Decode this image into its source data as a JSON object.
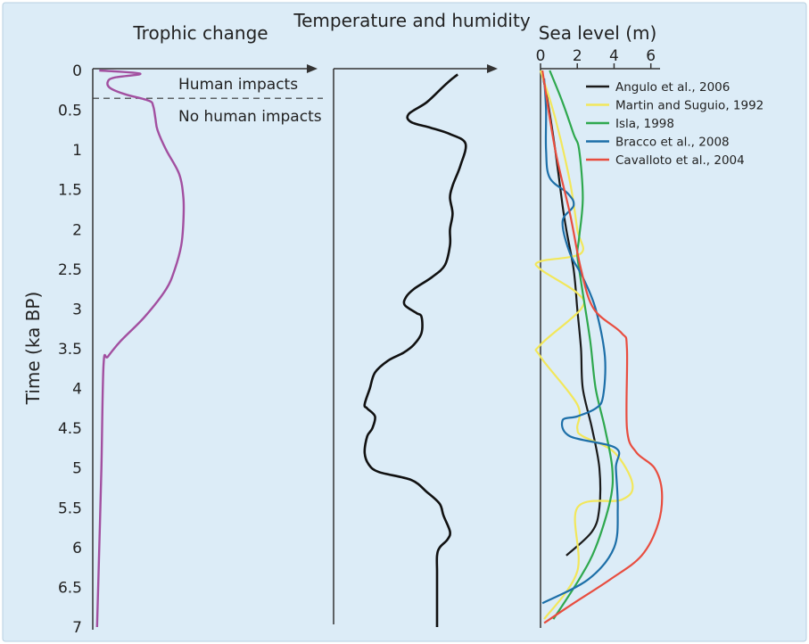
{
  "chart_data": {
    "type": "line",
    "ylabel": "Time (ka BP)",
    "y_ticks": [
      "0",
      "0.5",
      "1",
      "1.5",
      "2",
      "2.5",
      "3",
      "3.5",
      "4",
      "4.5",
      "5",
      "5.5",
      "6",
      "6.5",
      "7"
    ],
    "ylim": [
      0,
      7
    ],
    "y_inverted": true,
    "background": "#dcecf7",
    "panels": [
      {
        "title": "Trophic change",
        "threshold": 0.35,
        "annotations": [
          "Human impacts",
          "No human impacts"
        ],
        "series": [
          {
            "color": "#a24fa0",
            "points": [
              [
                0.03,
                0
              ],
              [
                0.22,
                0.04
              ],
              [
                0.1,
                0.09
              ],
              [
                0.07,
                0.14
              ],
              [
                0.08,
                0.22
              ],
              [
                0.15,
                0.3
              ],
              [
                0.26,
                0.38
              ],
              [
                0.28,
                0.45
              ],
              [
                0.29,
                0.6
              ],
              [
                0.3,
                0.75
              ],
              [
                0.34,
                1.0
              ],
              [
                0.4,
                1.3
              ],
              [
                0.42,
                1.6
              ],
              [
                0.42,
                1.9
              ],
              [
                0.41,
                2.2
              ],
              [
                0.38,
                2.5
              ],
              [
                0.34,
                2.75
              ],
              [
                0.24,
                3.1
              ],
              [
                0.13,
                3.4
              ],
              [
                0.07,
                3.6
              ],
              [
                0.05,
                3.7
              ],
              [
                0.04,
                5.0
              ],
              [
                0.03,
                6.0
              ],
              [
                0.02,
                7.0
              ]
            ]
          }
        ]
      },
      {
        "title": "Temperature and humidity",
        "series": [
          {
            "color": "#111111",
            "points": [
              [
                0.46,
                0.05
              ],
              [
                0.42,
                0.1
              ],
              [
                0.35,
                0.2
              ],
              [
                0.22,
                0.4
              ],
              [
                0.08,
                0.55
              ],
              [
                0.1,
                0.65
              ],
              [
                0.25,
                0.72
              ],
              [
                0.4,
                0.8
              ],
              [
                0.52,
                0.92
              ],
              [
                0.48,
                1.2
              ],
              [
                0.42,
                1.45
              ],
              [
                0.4,
                1.6
              ],
              [
                0.42,
                1.8
              ],
              [
                0.4,
                2.0
              ],
              [
                0.4,
                2.2
              ],
              [
                0.36,
                2.45
              ],
              [
                0.26,
                2.6
              ],
              [
                0.12,
                2.75
              ],
              [
                0.06,
                2.85
              ],
              [
                0.05,
                2.95
              ],
              [
                0.14,
                3.05
              ],
              [
                0.18,
                3.1
              ],
              [
                0.18,
                3.3
              ],
              [
                0.12,
                3.45
              ],
              [
                0.04,
                3.55
              ],
              [
                -0.08,
                3.65
              ],
              [
                -0.18,
                3.8
              ],
              [
                -0.22,
                4.0
              ],
              [
                -0.26,
                4.2
              ],
              [
                -0.24,
                4.25
              ],
              [
                -0.18,
                4.35
              ],
              [
                -0.2,
                4.5
              ],
              [
                -0.24,
                4.6
              ],
              [
                -0.26,
                4.8
              ],
              [
                -0.23,
                4.95
              ],
              [
                -0.15,
                5.05
              ],
              [
                0.1,
                5.15
              ],
              [
                0.22,
                5.3
              ],
              [
                0.32,
                5.45
              ],
              [
                0.35,
                5.6
              ],
              [
                0.4,
                5.8
              ],
              [
                0.38,
                5.9
              ],
              [
                0.32,
                6.0
              ],
              [
                0.3,
                6.1
              ],
              [
                0.3,
                6.3
              ],
              [
                0.3,
                6.5
              ],
              [
                0.3,
                7.0
              ]
            ]
          }
        ]
      },
      {
        "title": "Sea level (m)",
        "xlim": [
          0,
          6.5
        ],
        "x_ticks": [
          "0",
          "2",
          "4",
          "6"
        ],
        "series": [
          {
            "name": "Angulo et al., 2006",
            "color": "#1a1a1a",
            "points": [
              [
                0.1,
                0.05
              ],
              [
                0.4,
                0.4
              ],
              [
                0.8,
                1.0
              ],
              [
                1.2,
                1.7
              ],
              [
                1.4,
                2.0
              ],
              [
                1.8,
                2.5
              ],
              [
                2.0,
                3.0
              ],
              [
                2.2,
                3.5
              ],
              [
                2.3,
                4.0
              ],
              [
                2.8,
                4.5
              ],
              [
                3.2,
                5.0
              ],
              [
                3.2,
                5.5
              ],
              [
                2.8,
                5.8
              ],
              [
                1.4,
                6.1
              ]
            ]
          },
          {
            "name": "Martin and Suguio, 1992",
            "color": "#f2e75b",
            "points": [
              [
                0,
                0
              ],
              [
                0.8,
                0.6
              ],
              [
                1.6,
                1.4
              ],
              [
                2.0,
                2.0
              ],
              [
                2.2,
                2.3
              ],
              [
                0.0,
                2.4
              ],
              [
                0.0,
                2.5
              ],
              [
                2.0,
                2.8
              ],
              [
                2.2,
                3.0
              ],
              [
                0.0,
                3.45
              ],
              [
                0.0,
                3.6
              ],
              [
                2.0,
                4.2
              ],
              [
                2.0,
                4.5
              ],
              [
                2.3,
                4.6
              ],
              [
                4.0,
                4.8
              ],
              [
                5.0,
                5.2
              ],
              [
                4.4,
                5.4
              ],
              [
                2.0,
                5.5
              ],
              [
                2.0,
                6.3
              ],
              [
                0.2,
                6.9
              ]
            ]
          },
          {
            "name": "Isla, 1998",
            "color": "#2ea84e",
            "points": [
              [
                0.5,
                0
              ],
              [
                1.2,
                0.4
              ],
              [
                1.8,
                0.8
              ],
              [
                2.1,
                1.0
              ],
              [
                2.3,
                1.6
              ],
              [
                2.1,
                2.1
              ],
              [
                2.0,
                2.3
              ],
              [
                2.1,
                2.5
              ],
              [
                2.3,
                2.8
              ],
              [
                2.7,
                3.4
              ],
              [
                3.0,
                4.0
              ],
              [
                3.5,
                4.5
              ],
              [
                3.9,
                5.0
              ],
              [
                3.8,
                5.4
              ],
              [
                3.0,
                6.0
              ],
              [
                2.1,
                6.4
              ],
              [
                0.7,
                6.9
              ]
            ]
          },
          {
            "name": "Bracco et al., 2008",
            "color": "#1d6fa8",
            "points": [
              [
                0.2,
                0.1
              ],
              [
                0.3,
                0.5
              ],
              [
                0.3,
                1.0
              ],
              [
                0.5,
                1.35
              ],
              [
                1.5,
                1.55
              ],
              [
                1.8,
                1.7
              ],
              [
                1.2,
                1.9
              ],
              [
                1.6,
                2.3
              ],
              [
                2.3,
                2.6
              ],
              [
                3.0,
                3.0
              ],
              [
                3.5,
                3.6
              ],
              [
                3.4,
                4.1
              ],
              [
                3.0,
                4.25
              ],
              [
                2.0,
                4.35
              ],
              [
                1.2,
                4.4
              ],
              [
                1.6,
                4.6
              ],
              [
                4.1,
                4.75
              ],
              [
                4.1,
                5.0
              ],
              [
                4.2,
                5.5
              ],
              [
                4.0,
                6.0
              ],
              [
                2.6,
                6.4
              ],
              [
                0.1,
                6.7
              ]
            ]
          },
          {
            "name": "Cavalloto et al., 2004",
            "color": "#e84d3f",
            "points": [
              [
                0.1,
                0
              ],
              [
                0.8,
                1.0
              ],
              [
                1.6,
                1.8
              ],
              [
                2.2,
                2.5
              ],
              [
                2.9,
                3.0
              ],
              [
                4.4,
                3.3
              ],
              [
                4.7,
                3.5
              ],
              [
                4.7,
                4.5
              ],
              [
                5.2,
                4.8
              ],
              [
                6.2,
                5.0
              ],
              [
                6.6,
                5.3
              ],
              [
                6.4,
                5.7
              ],
              [
                5.5,
                6.1
              ],
              [
                3.8,
                6.4
              ],
              [
                1.8,
                6.7
              ],
              [
                0.2,
                6.95
              ]
            ]
          }
        ]
      }
    ]
  }
}
